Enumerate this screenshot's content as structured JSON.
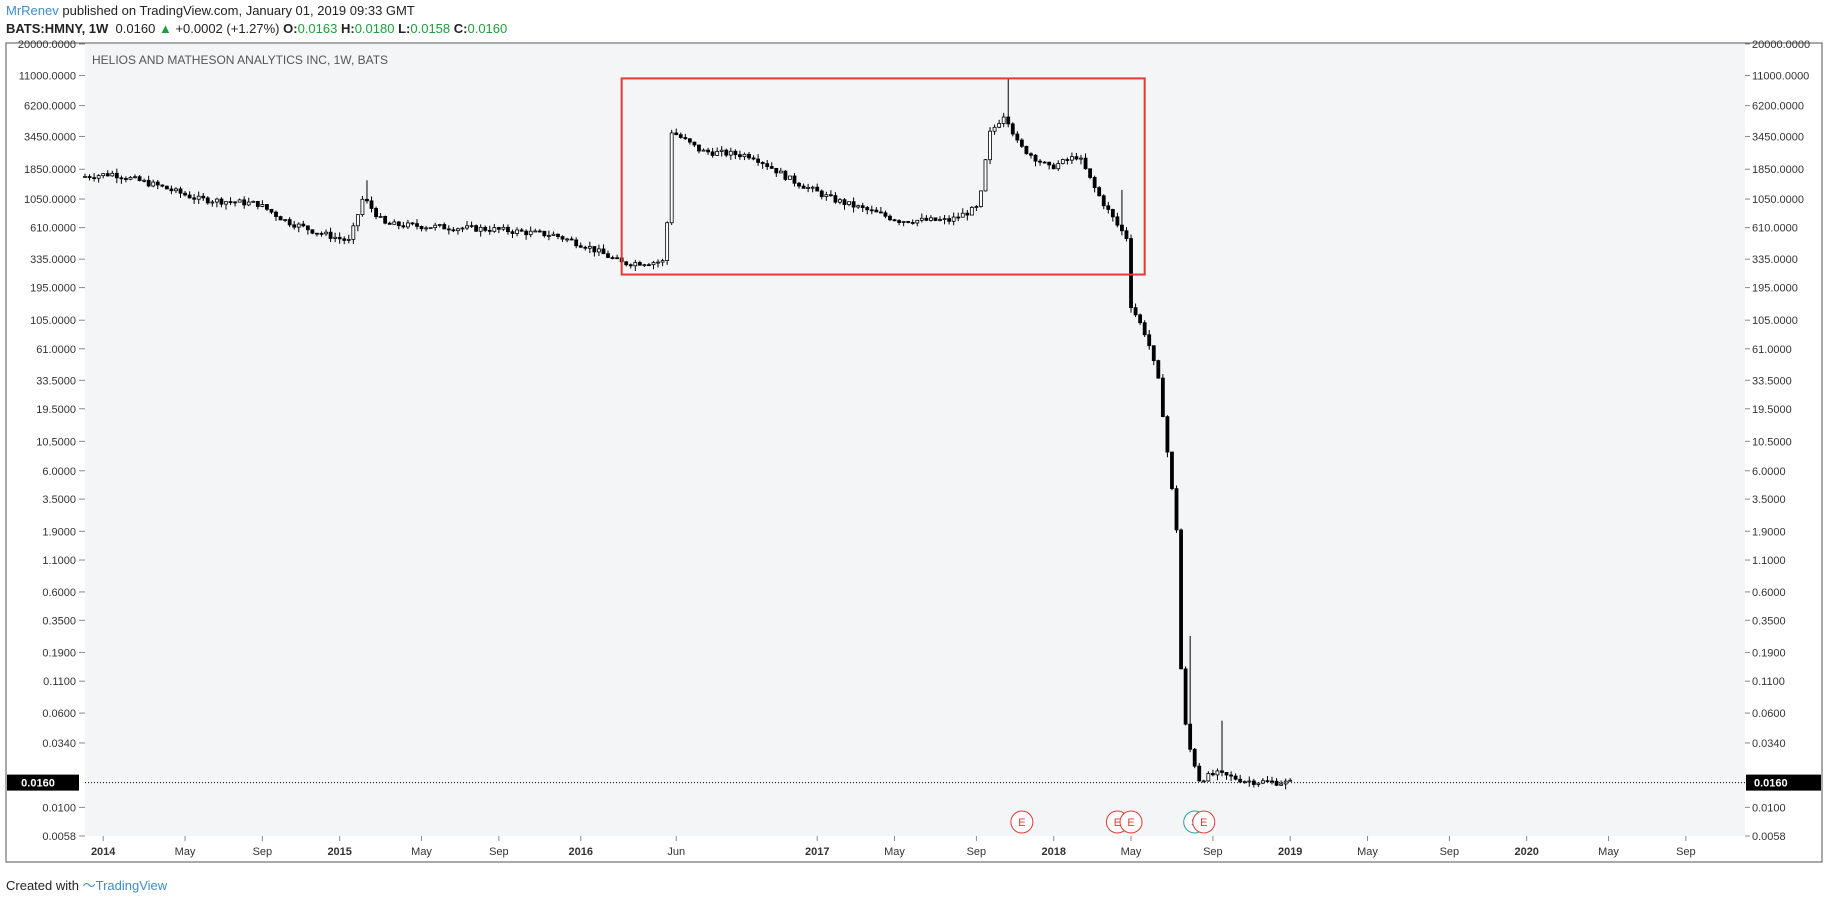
{
  "header": {
    "author": "MrRenev",
    "published_text": "published on TradingView.com, January 01, 2019 09:33 GMT",
    "symbol": "BATS:HMNY, 1W",
    "last": "0.0160",
    "change": "+0.0002 (+1.27%)",
    "o_label": "O:",
    "o_value": "0.0163",
    "h_label": "H:",
    "h_value": "0.0180",
    "l_label": "L:",
    "l_value": "0.0158",
    "c_label": "C:",
    "c_value": "0.0160"
  },
  "footer": {
    "created_with": "Created with",
    "brand": "TradingView"
  },
  "colors": {
    "pane_bg": "#f4f5f7",
    "candle": "#000000",
    "box": "#e53935",
    "earnings": "#e53935",
    "split": "#26a69a"
  },
  "chart_data": {
    "type": "candlestick",
    "title": "HELIOS AND MATHESON ANALYTICS INC, 1W, BATS",
    "y_scale": "log",
    "ylim": [
      0.0058,
      20000
    ],
    "y_ticks": [
      "20000.0000",
      "11000.0000",
      "6200.0000",
      "3450.0000",
      "1850.0000",
      "1050.0000",
      "610.0000",
      "335.0000",
      "195.0000",
      "105.0000",
      "61.0000",
      "33.5000",
      "19.5000",
      "10.5000",
      "6.0000",
      "3.5000",
      "1.9000",
      "1.1000",
      "0.6000",
      "0.3500",
      "0.1900",
      "0.1100",
      "0.0600",
      "0.0340",
      "0.0100",
      "0.0058"
    ],
    "x_ticks": [
      "2014",
      "May",
      "Sep",
      "2015",
      "May",
      "Sep",
      "2016",
      "Jun",
      "2017",
      "May",
      "Sep",
      "2018",
      "May",
      "Sep",
      "2019",
      "May",
      "Sep",
      "2020",
      "May",
      "Sep"
    ],
    "xlim": [
      "2013-12-02",
      "2020-11-30"
    ],
    "last_price_label": "0.0160",
    "series_trend": [
      [
        "2013-12-02",
        1600
      ],
      [
        "2014-01-20",
        1700
      ],
      [
        "2014-04-01",
        1350
      ],
      [
        "2014-06-01",
        1050
      ],
      [
        "2014-09-01",
        960
      ],
      [
        "2014-10-15",
        690
      ],
      [
        "2014-12-01",
        560
      ],
      [
        "2015-01-20",
        470
      ],
      [
        "2015-02-10",
        1080
      ],
      [
        "2015-03-15",
        650
      ],
      [
        "2015-06-01",
        620
      ],
      [
        "2015-09-01",
        590
      ],
      [
        "2015-12-01",
        530
      ],
      [
        "2016-01-20",
        430
      ],
      [
        "2016-03-15",
        310
      ],
      [
        "2016-05-20",
        320
      ],
      [
        "2016-05-30",
        3800
      ],
      [
        "2016-07-15",
        2600
      ],
      [
        "2016-10-01",
        2400
      ],
      [
        "2016-12-01",
        1500
      ],
      [
        "2017-02-01",
        1050
      ],
      [
        "2017-05-15",
        700
      ],
      [
        "2017-08-01",
        700
      ],
      [
        "2017-09-15",
        900
      ],
      [
        "2017-10-01",
        3600
      ],
      [
        "2017-10-25",
        5400
      ],
      [
        "2017-11-15",
        2900
      ],
      [
        "2018-01-01",
        1900
      ],
      [
        "2018-02-15",
        2400
      ],
      [
        "2018-03-15",
        1200
      ],
      [
        "2018-04-15",
        650
      ],
      [
        "2018-05-01",
        500
      ],
      [
        "2018-05-07",
        140
      ],
      [
        "2018-06-01",
        75
      ],
      [
        "2018-06-20",
        30
      ],
      [
        "2018-07-16",
        2.0
      ],
      [
        "2018-07-25",
        0.065
      ],
      [
        "2018-08-06",
        0.03
      ],
      [
        "2018-08-20",
        0.017
      ],
      [
        "2018-09-15",
        0.019
      ],
      [
        "2018-11-01",
        0.0165
      ],
      [
        "2018-12-31",
        0.016
      ]
    ],
    "spikes": [
      {
        "date": "2015-02-10",
        "high": 1500
      },
      {
        "date": "2017-10-23",
        "high": 10400
      },
      {
        "date": "2018-04-15",
        "high": 1250
      },
      {
        "date": "2018-07-30",
        "high": 0.26
      },
      {
        "date": "2018-09-15",
        "high": 0.052
      }
    ],
    "annotation_box": {
      "x_from": "2016-03-07",
      "x_to": "2018-05-21",
      "y_from": 250,
      "y_to": 10400
    },
    "events": [
      {
        "label": "E",
        "date": "2017-11-13",
        "kind": "earnings"
      },
      {
        "label": "E",
        "date": "2018-04-09",
        "kind": "earnings"
      },
      {
        "label": "E",
        "date": "2018-04-30",
        "kind": "earnings"
      },
      {
        "label": "S",
        "date": "2018-08-06",
        "kind": "split"
      },
      {
        "label": "E",
        "date": "2018-08-20",
        "kind": "earnings"
      }
    ]
  }
}
